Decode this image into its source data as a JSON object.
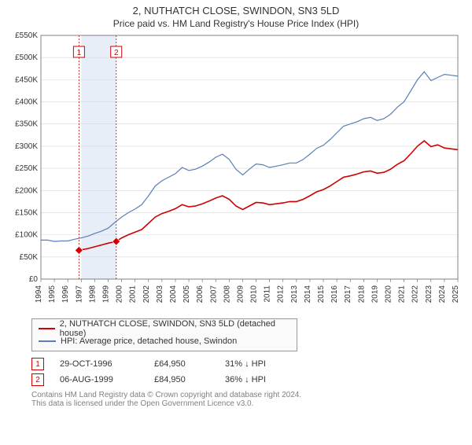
{
  "title_line1": "2, NUTHATCH CLOSE, SWINDON, SN3 5LD",
  "title_line2": "Price paid vs. HM Land Registry's House Price Index (HPI)",
  "chart": {
    "type": "line",
    "background_color": "#ffffff",
    "grid_color": "#d9d9d9",
    "axis_color": "#666666",
    "label_fontsize": 10,
    "x": {
      "min": 1994,
      "max": 2025,
      "step": 1,
      "ticks": [
        1994,
        1995,
        1996,
        1997,
        1998,
        1999,
        2000,
        2001,
        2002,
        2003,
        2004,
        2005,
        2006,
        2007,
        2008,
        2009,
        2010,
        2011,
        2012,
        2013,
        2014,
        2015,
        2016,
        2017,
        2018,
        2019,
        2020,
        2021,
        2022,
        2023,
        2024,
        2025
      ]
    },
    "y": {
      "min": 0,
      "max": 550000,
      "step": 50000,
      "ticks": [
        "£0",
        "£50K",
        "£100K",
        "£150K",
        "£200K",
        "£250K",
        "£300K",
        "£350K",
        "£400K",
        "£450K",
        "£500K",
        "£550K"
      ]
    },
    "band": {
      "from": 1997,
      "to": 1999.6,
      "fill": "#e8eef7"
    },
    "annotation_lines": [
      {
        "x": 1996.83,
        "label": "1",
        "color": "#d00000"
      },
      {
        "x": 1999.6,
        "label": "2",
        "color": "#d00000"
      }
    ],
    "series": [
      {
        "name": "HPI: Average price, detached house, Swindon",
        "color": "#5a7fb8",
        "width": 1.2,
        "points": [
          [
            1994,
            88000
          ],
          [
            1994.5,
            88000
          ],
          [
            1995,
            85000
          ],
          [
            1995.5,
            86000
          ],
          [
            1996,
            86000
          ],
          [
            1996.5,
            90000
          ],
          [
            1997,
            93000
          ],
          [
            1997.5,
            97000
          ],
          [
            1998,
            103000
          ],
          [
            1998.5,
            108000
          ],
          [
            1999,
            115000
          ],
          [
            1999.5,
            128000
          ],
          [
            2000,
            140000
          ],
          [
            2000.5,
            150000
          ],
          [
            2001,
            158000
          ],
          [
            2001.5,
            168000
          ],
          [
            2002,
            188000
          ],
          [
            2002.5,
            210000
          ],
          [
            2003,
            222000
          ],
          [
            2003.5,
            230000
          ],
          [
            2004,
            238000
          ],
          [
            2004.5,
            252000
          ],
          [
            2005,
            245000
          ],
          [
            2005.5,
            248000
          ],
          [
            2006,
            255000
          ],
          [
            2006.5,
            264000
          ],
          [
            2007,
            275000
          ],
          [
            2007.5,
            282000
          ],
          [
            2008,
            270000
          ],
          [
            2008.5,
            248000
          ],
          [
            2009,
            235000
          ],
          [
            2009.5,
            248000
          ],
          [
            2010,
            260000
          ],
          [
            2010.5,
            258000
          ],
          [
            2011,
            252000
          ],
          [
            2011.5,
            255000
          ],
          [
            2012,
            258000
          ],
          [
            2012.5,
            262000
          ],
          [
            2013,
            262000
          ],
          [
            2013.5,
            270000
          ],
          [
            2014,
            282000
          ],
          [
            2014.5,
            295000
          ],
          [
            2015,
            302000
          ],
          [
            2015.5,
            315000
          ],
          [
            2016,
            330000
          ],
          [
            2016.5,
            345000
          ],
          [
            2017,
            350000
          ],
          [
            2017.5,
            355000
          ],
          [
            2018,
            362000
          ],
          [
            2018.5,
            365000
          ],
          [
            2019,
            358000
          ],
          [
            2019.5,
            362000
          ],
          [
            2020,
            372000
          ],
          [
            2020.5,
            388000
          ],
          [
            2021,
            400000
          ],
          [
            2021.5,
            425000
          ],
          [
            2022,
            450000
          ],
          [
            2022.5,
            468000
          ],
          [
            2023,
            448000
          ],
          [
            2023.5,
            455000
          ],
          [
            2024,
            462000
          ],
          [
            2024.5,
            460000
          ],
          [
            2025,
            458000
          ]
        ]
      },
      {
        "name": "2, NUTHATCH CLOSE, SWINDON, SN3 5LD (detached house)",
        "color": "#d00000",
        "width": 1.6,
        "points": [
          [
            1996.83,
            64950
          ],
          [
            1997,
            66000
          ],
          [
            1997.5,
            69000
          ],
          [
            1998,
            73000
          ],
          [
            1998.5,
            77000
          ],
          [
            1999,
            81000
          ],
          [
            1999.6,
            84950
          ],
          [
            2000,
            93000
          ],
          [
            2000.5,
            100000
          ],
          [
            2001,
            106000
          ],
          [
            2001.5,
            112000
          ],
          [
            2002,
            126000
          ],
          [
            2002.5,
            140000
          ],
          [
            2003,
            148000
          ],
          [
            2003.5,
            153000
          ],
          [
            2004,
            159000
          ],
          [
            2004.5,
            168000
          ],
          [
            2005,
            163000
          ],
          [
            2005.5,
            165000
          ],
          [
            2006,
            170000
          ],
          [
            2006.5,
            176000
          ],
          [
            2007,
            183000
          ],
          [
            2007.5,
            188000
          ],
          [
            2008,
            180000
          ],
          [
            2008.5,
            165000
          ],
          [
            2009,
            157000
          ],
          [
            2009.5,
            165000
          ],
          [
            2010,
            173000
          ],
          [
            2010.5,
            172000
          ],
          [
            2011,
            168000
          ],
          [
            2011.5,
            170000
          ],
          [
            2012,
            172000
          ],
          [
            2012.5,
            175000
          ],
          [
            2013,
            175000
          ],
          [
            2013.5,
            180000
          ],
          [
            2014,
            188000
          ],
          [
            2014.5,
            197000
          ],
          [
            2015,
            202000
          ],
          [
            2015.5,
            210000
          ],
          [
            2016,
            220000
          ],
          [
            2016.5,
            230000
          ],
          [
            2017,
            233000
          ],
          [
            2017.5,
            237000
          ],
          [
            2018,
            242000
          ],
          [
            2018.5,
            244000
          ],
          [
            2019,
            239000
          ],
          [
            2019.5,
            241000
          ],
          [
            2020,
            248000
          ],
          [
            2020.5,
            259000
          ],
          [
            2021,
            267000
          ],
          [
            2021.5,
            283000
          ],
          [
            2022,
            300000
          ],
          [
            2022.5,
            312000
          ],
          [
            2023,
            299000
          ],
          [
            2023.5,
            303000
          ],
          [
            2024,
            296000
          ],
          [
            2024.5,
            294000
          ],
          [
            2025,
            292000
          ]
        ]
      }
    ],
    "markers": [
      {
        "x": 1996.83,
        "y": 64950,
        "color": "#d00000",
        "shape": "diamond",
        "size": 5
      },
      {
        "x": 1999.6,
        "y": 84950,
        "color": "#d00000",
        "shape": "diamond",
        "size": 5
      }
    ]
  },
  "legend": {
    "items": [
      {
        "color": "#d00000",
        "label": "2, NUTHATCH CLOSE, SWINDON, SN3 5LD (detached house)"
      },
      {
        "color": "#5a7fb8",
        "label": "HPI: Average price, detached house, Swindon"
      }
    ]
  },
  "annotations": [
    {
      "badge": "1",
      "date": "29-OCT-1996",
      "price": "£64,950",
      "delta": "31% ↓ HPI"
    },
    {
      "badge": "2",
      "date": "06-AUG-1999",
      "price": "£84,950",
      "delta": "36% ↓ HPI"
    }
  ],
  "copyright": {
    "line1": "Contains HM Land Registry data © Crown copyright and database right 2024.",
    "line2": "This data is licensed under the Open Government Licence v3.0."
  }
}
